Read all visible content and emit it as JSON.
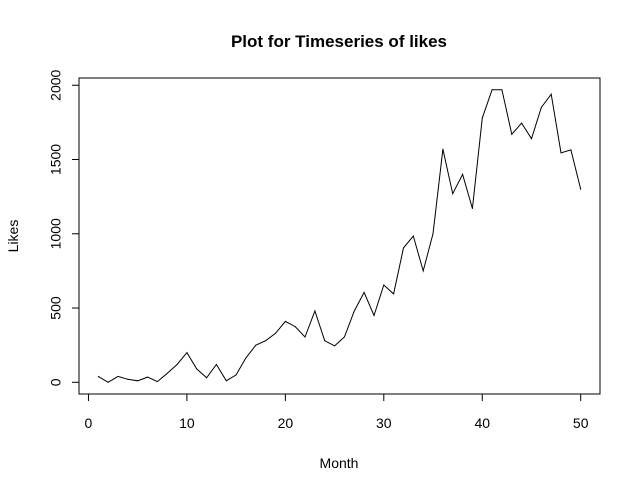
{
  "chart_data": {
    "type": "line",
    "title": "Plot for Timeseries of likes",
    "xlabel": "Month",
    "ylabel": "Likes",
    "xlim": [
      -0.96,
      51.96
    ],
    "ylim": [
      -78.8,
      2048.8
    ],
    "xticks": [
      0,
      10,
      20,
      30,
      40,
      50
    ],
    "yticks": [
      0,
      500,
      1000,
      1500,
      2000
    ],
    "grid": false,
    "line_color": "#000000",
    "series": [
      {
        "x": [
          1,
          2,
          3,
          4,
          5,
          6,
          7,
          8,
          9,
          10,
          11,
          12,
          13,
          14,
          15,
          16,
          17,
          18,
          19,
          20,
          21,
          22,
          23,
          24,
          25,
          26,
          27,
          28,
          29,
          30,
          31,
          32,
          33,
          34,
          35,
          36,
          37,
          38,
          39,
          40,
          41,
          42,
          43,
          44,
          45,
          46,
          47,
          48,
          49,
          50
        ],
        "values": [
          40,
          0,
          40,
          20,
          10,
          35,
          5,
          60,
          120,
          200,
          90,
          30,
          120,
          10,
          50,
          165,
          250,
          280,
          330,
          410,
          375,
          305,
          480,
          280,
          245,
          305,
          480,
          605,
          450,
          655,
          595,
          905,
          985,
          750,
          1000,
          1570,
          1270,
          1400,
          1170,
          1780,
          1970,
          1970,
          1670,
          1745,
          1640,
          1850,
          1940,
          1545,
          1565,
          1300
        ]
      }
    ]
  }
}
